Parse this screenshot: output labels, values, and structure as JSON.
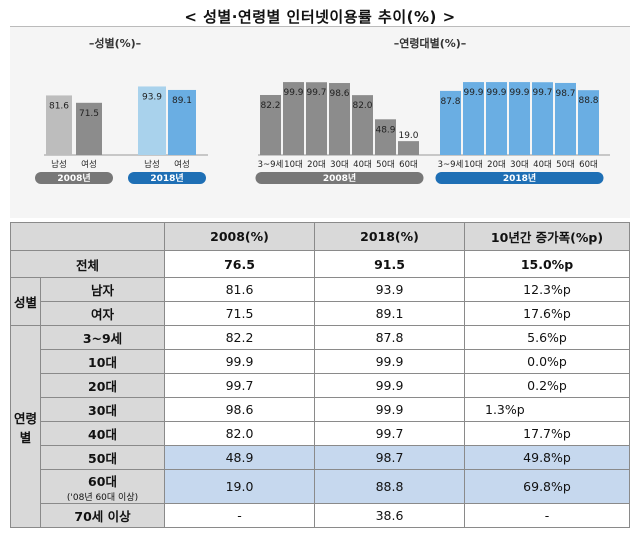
{
  "title": "< 성별·연령별 인터넷이용률 추이(%) >",
  "charts": {
    "gender": {
      "title": "–성별(%)–",
      "categories": [
        "남성",
        "여성"
      ],
      "y2008": [
        81.6,
        71.5
      ],
      "y2018": [
        93.9,
        89.1
      ],
      "year2008": "2008년",
      "year2018": "2018년"
    },
    "age": {
      "title": "–연령대별(%)–",
      "categories": [
        "3~9세",
        "10대",
        "20대",
        "30대",
        "40대",
        "50대",
        "60대"
      ],
      "y2008": [
        82.2,
        99.9,
        99.7,
        98.6,
        82.0,
        48.9,
        19.0
      ],
      "y2018": [
        87.8,
        99.9,
        99.9,
        99.9,
        99.7,
        98.7,
        88.8
      ],
      "year2008": "2008년",
      "year2018": "2018년"
    },
    "colors": {
      "gray_dark": "#8c8c8c",
      "gray_light": "#bdbdbd",
      "blue_light": "#a9d2ec",
      "blue": "#6aaee3",
      "year_gray": "#777777",
      "year_blue": "#1e6fb5"
    }
  },
  "table": {
    "headers": [
      "",
      "2008(%)",
      "2018(%)",
      "10년간 증가폭(%p)"
    ],
    "total": {
      "label": "전체",
      "v2008": "76.5",
      "v2018": "91.5",
      "diff": "15.0%p"
    },
    "gender_group": "성별",
    "gender_rows": [
      {
        "label": "남자",
        "v2008": "81.6",
        "v2018": "93.9",
        "diff": "12.3%p"
      },
      {
        "label": "여자",
        "v2008": "71.5",
        "v2018": "89.1",
        "diff": "17.6%p"
      }
    ],
    "age_group_line1": "연령",
    "age_group_line2": "별",
    "age_rows": [
      {
        "label": "3~9세",
        "v2008": "82.2",
        "v2018": "87.8",
        "diff": "5.6%p"
      },
      {
        "label": "10대",
        "v2008": "99.9",
        "v2018": "99.9",
        "diff": "0.0%p"
      },
      {
        "label": "20대",
        "v2008": "99.7",
        "v2018": "99.9",
        "diff": "0.2%p"
      },
      {
        "label": "30대",
        "v2008": "98.6",
        "v2018": "99.9",
        "diff": "1.3%p"
      },
      {
        "label": "40대",
        "v2008": "82.0",
        "v2018": "99.7",
        "diff": "17.7%p"
      },
      {
        "label": "50대",
        "v2008": "48.9",
        "v2018": "98.7",
        "diff": "49.8%p"
      },
      {
        "label": "60대",
        "note": "('08년 60대 이상)",
        "v2008": "19.0",
        "v2018": "88.8",
        "diff": "69.8%p"
      },
      {
        "label": "70세 이상",
        "v2008": "-",
        "v2018": "38.6",
        "diff": "-"
      }
    ]
  }
}
